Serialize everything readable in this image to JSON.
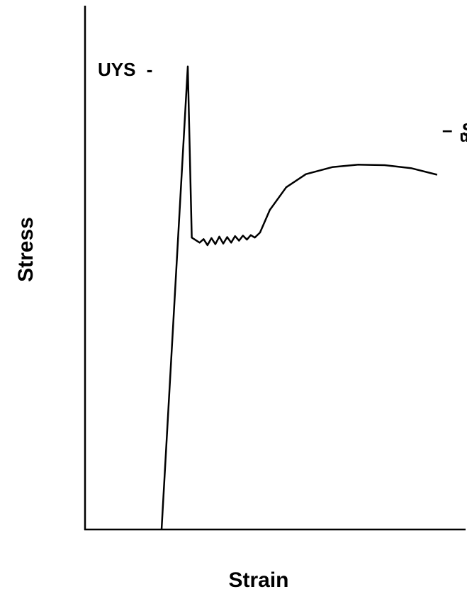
{
  "chart_data": {
    "type": "line",
    "title": "",
    "xlabel": "Strain",
    "ylabel": "Stress",
    "grid": false,
    "legend": "none",
    "color": "#000000",
    "annotations": {
      "upper_yield": {
        "text": "UYS",
        "dash": "-"
      },
      "ultimate": {
        "dash": "–",
        "main": "S",
        "sub": "u"
      }
    },
    "series": [
      {
        "values": [
          {
            "x": 0.0,
            "y": 0.0
          },
          {
            "x": 0.04,
            "y": 0.92
          },
          {
            "x": 0.046,
            "y": 0.58
          },
          {
            "x": 0.058,
            "y": 0.57
          },
          {
            "x": 0.064,
            "y": 0.577
          },
          {
            "x": 0.07,
            "y": 0.565
          },
          {
            "x": 0.076,
            "y": 0.579
          },
          {
            "x": 0.082,
            "y": 0.567
          },
          {
            "x": 0.088,
            "y": 0.582
          },
          {
            "x": 0.094,
            "y": 0.568
          },
          {
            "x": 0.1,
            "y": 0.581
          },
          {
            "x": 0.106,
            "y": 0.57
          },
          {
            "x": 0.112,
            "y": 0.583
          },
          {
            "x": 0.118,
            "y": 0.574
          },
          {
            "x": 0.124,
            "y": 0.584
          },
          {
            "x": 0.13,
            "y": 0.576
          },
          {
            "x": 0.136,
            "y": 0.585
          },
          {
            "x": 0.142,
            "y": 0.58
          },
          {
            "x": 0.15,
            "y": 0.59
          },
          {
            "x": 0.165,
            "y": 0.635
          },
          {
            "x": 0.19,
            "y": 0.68
          },
          {
            "x": 0.22,
            "y": 0.706
          },
          {
            "x": 0.26,
            "y": 0.72
          },
          {
            "x": 0.3,
            "y": 0.725
          },
          {
            "x": 0.34,
            "y": 0.724
          },
          {
            "x": 0.38,
            "y": 0.718
          },
          {
            "x": 0.42,
            "y": 0.705
          }
        ]
      }
    ]
  }
}
